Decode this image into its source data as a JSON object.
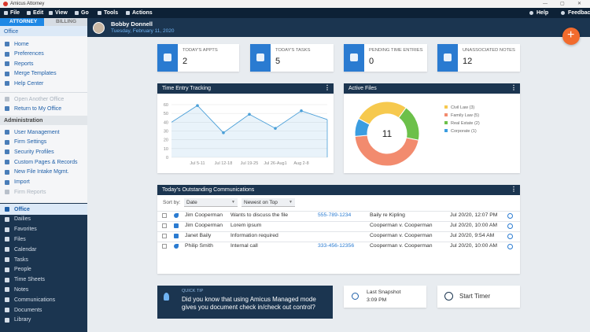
{
  "title_bar": {
    "app": "Amicus Attorney"
  },
  "menu": {
    "items": [
      "File",
      "Edit",
      "View",
      "Go",
      "Tools",
      "Actions"
    ],
    "right": [
      "Help",
      "Feedback"
    ]
  },
  "sidebar": {
    "tabs": [
      "ATTORNEY",
      "BILLING"
    ],
    "office_header": "Office",
    "office_items": [
      "Home",
      "Preferences",
      "Reports",
      "Merge Templates",
      "Help Center"
    ],
    "office_switch": [
      "Open Another Office",
      "Return to My Office"
    ],
    "admin_header": "Administration",
    "admin_items": [
      "User Management",
      "Firm Settings",
      "Security Profiles",
      "Custom Pages & Records",
      "New File Intake Mgmt.",
      "Import",
      "Firm Reports"
    ],
    "nav": [
      "Office",
      "Dailies",
      "Favorites",
      "Files",
      "Calendar",
      "Tasks",
      "People",
      "Time Sheets",
      "Notes",
      "Communications",
      "Documents",
      "Library"
    ]
  },
  "header": {
    "user": "Bobby Donnell",
    "date": "Tuesday, February 11, 2020"
  },
  "stats": [
    {
      "label": "TODAY'S APPTS",
      "value": 2
    },
    {
      "label": "TODAY'S TASKS",
      "value": 5
    },
    {
      "label": "PENDING TIME ENTRIES",
      "value": 0
    },
    {
      "label": "UNASSOCIATED NOTES",
      "value": 12
    }
  ],
  "time_entry": {
    "title": "Time Entry Tracking",
    "type": "area",
    "categories": [
      null,
      "Jul 5-11",
      "Jul 12-18",
      "Jul 19-25",
      "Jul 26-Aug1",
      "Aug 2-8",
      null
    ],
    "values": [
      40,
      59,
      28,
      49,
      33,
      53,
      43
    ],
    "ylim": [
      0,
      60
    ],
    "yticks": [
      0,
      10,
      20,
      30,
      40,
      50,
      60
    ],
    "grid": true,
    "color": "#4a9fd8"
  },
  "active_files": {
    "title": "Active Files",
    "type": "donut",
    "legend": [
      "Civil Law (3)",
      "Family Law (5)",
      "Real Estate (2)",
      "Corporate (1)"
    ],
    "values": [
      3,
      5,
      2,
      1
    ],
    "colors": [
      "#f6c94e",
      "#f28b6e",
      "#6cc04a",
      "#3b9de0"
    ],
    "total": 11
  },
  "communications": {
    "title": "Today's Outstanding Communications",
    "sort_label": "Sort by:",
    "sort_field": "Date",
    "sort_order": "Newest on Top",
    "rows": [
      {
        "kind": "phone",
        "from": "Jim Cooperman",
        "subject": "Wants to discuss the file",
        "phone": "555-789-1234",
        "file": "Baily re Kipling",
        "date": "Jul 20/20, 12:07 PM"
      },
      {
        "kind": "chat",
        "from": "Jim Cooperman",
        "subject": "Lorem ipsum",
        "file": "Cooperman v. Cooperman",
        "date": "Jul 20/20, 10:00 AM"
      },
      {
        "kind": "email",
        "from": "Janet Baily",
        "subject": "Information required",
        "file": "Cooperman v. Cooperman",
        "date": "Jul 20/20, 9:54 AM"
      },
      {
        "kind": "phone",
        "from": "Philip Smith",
        "subject": "Internal call",
        "phone": "333-456-12356",
        "file": "Cooperman v. Cooperman",
        "date": "Jul 20/20, 10:00 AM"
      }
    ]
  },
  "quick_tip": {
    "label": "QUICK TIP",
    "text": "Did you know that using Amicus Managed mode gives you document check in/check out control?"
  },
  "snapshot": {
    "label": "Last Snapshot",
    "time": "3:09 PM"
  },
  "timer": {
    "label": "Start Timer"
  }
}
